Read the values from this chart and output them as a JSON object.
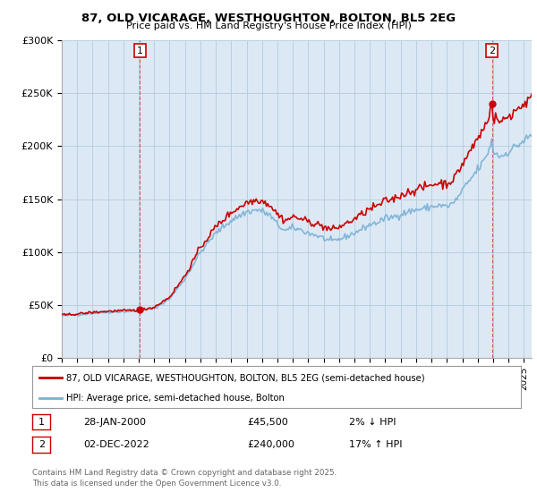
{
  "title": "87, OLD VICARAGE, WESTHOUGHTON, BOLTON, BL5 2EG",
  "subtitle": "Price paid vs. HM Land Registry's House Price Index (HPI)",
  "legend_line1": "87, OLD VICARAGE, WESTHOUGHTON, BOLTON, BL5 2EG (semi-detached house)",
  "legend_line2": "HPI: Average price, semi-detached house, Bolton",
  "sale1_label": "1",
  "sale1_date": "28-JAN-2000",
  "sale1_price": "£45,500",
  "sale1_hpi": "2% ↓ HPI",
  "sale2_label": "2",
  "sale2_date": "02-DEC-2022",
  "sale2_price": "£240,000",
  "sale2_hpi": "17% ↑ HPI",
  "footer": "Contains HM Land Registry data © Crown copyright and database right 2025.\nThis data is licensed under the Open Government Licence v3.0.",
  "yticks": [
    0,
    50000,
    100000,
    150000,
    200000,
    250000,
    300000
  ],
  "ytick_labels": [
    "£0",
    "£50K",
    "£100K",
    "£150K",
    "£200K",
    "£250K",
    "£300K"
  ],
  "red_color": "#cc0000",
  "blue_color": "#7ab0d4",
  "sale1_x": 2000.08,
  "sale1_y": 45500,
  "sale2_x": 2022.92,
  "sale2_y": 240000,
  "xmin": 1995,
  "xmax": 2025.5,
  "ymin": 0,
  "ymax": 300000,
  "background_color": "#dce9f5",
  "grid_color": "#b8cfe0"
}
